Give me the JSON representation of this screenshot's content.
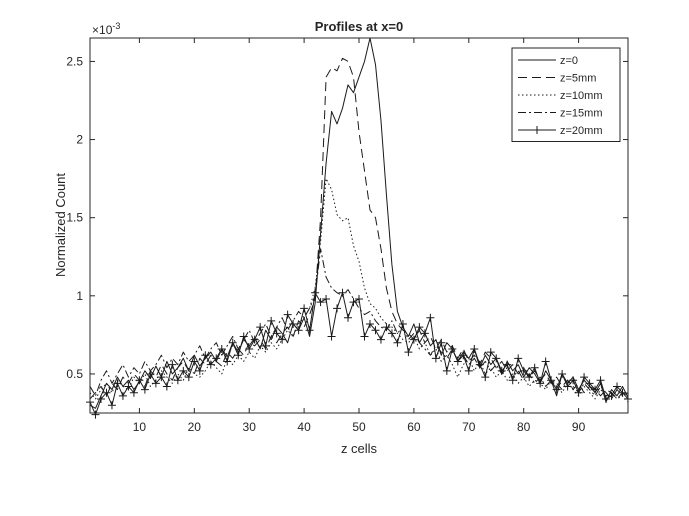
{
  "chart_data": {
    "type": "line",
    "title": "Profiles at x=0",
    "xlabel": "z cells",
    "ylabel": "Normalized Count",
    "y_exponent_label": "10",
    "y_exponent_power": "-3",
    "xlim": [
      1,
      99
    ],
    "ylim": [
      0.25,
      2.65
    ],
    "y_scale_factor": 0.001,
    "x_ticks": [
      10,
      20,
      30,
      40,
      50,
      60,
      70,
      80,
      90
    ],
    "y_ticks": [
      0.5,
      1,
      1.5,
      2,
      2.5
    ],
    "x_tick_labels": [
      "10",
      "20",
      "30",
      "40",
      "50",
      "60",
      "70",
      "80",
      "90"
    ],
    "y_tick_labels": [
      "0.5",
      "1",
      "1.5",
      "2",
      "2.5"
    ],
    "grid": false,
    "legend_position": "top-right",
    "series": [
      {
        "name": "z=0",
        "style": "solid",
        "x": [
          1,
          2,
          3,
          4,
          5,
          6,
          7,
          8,
          9,
          10,
          11,
          12,
          13,
          14,
          15,
          16,
          17,
          18,
          19,
          20,
          21,
          22,
          23,
          24,
          25,
          26,
          27,
          28,
          29,
          30,
          31,
          32,
          33,
          34,
          35,
          36,
          37,
          38,
          39,
          40,
          41,
          42,
          43,
          44,
          45,
          46,
          47,
          48,
          49,
          50,
          51,
          52,
          53,
          54,
          55,
          56,
          57,
          58,
          59,
          60,
          61,
          62,
          63,
          64,
          65,
          66,
          67,
          68,
          69,
          70,
          71,
          72,
          73,
          74,
          75,
          76,
          77,
          78,
          79,
          80,
          81,
          82,
          83,
          84,
          85,
          86,
          87,
          88,
          89,
          90,
          91,
          92,
          93,
          94,
          95,
          96,
          97,
          98,
          99
        ],
        "values": [
          0.3,
          0.28,
          0.36,
          0.44,
          0.4,
          0.48,
          0.42,
          0.46,
          0.4,
          0.45,
          0.52,
          0.47,
          0.55,
          0.48,
          0.58,
          0.5,
          0.54,
          0.6,
          0.52,
          0.62,
          0.55,
          0.6,
          0.64,
          0.58,
          0.66,
          0.61,
          0.7,
          0.64,
          0.72,
          0.68,
          0.73,
          0.66,
          0.78,
          0.72,
          0.8,
          0.76,
          0.7,
          0.82,
          0.78,
          0.86,
          0.74,
          0.95,
          1.4,
          1.85,
          2.18,
          2.1,
          2.2,
          2.35,
          2.3,
          2.4,
          2.5,
          2.65,
          2.48,
          2.12,
          1.65,
          1.2,
          0.9,
          0.8,
          0.74,
          0.82,
          0.7,
          0.76,
          0.68,
          0.72,
          0.62,
          0.7,
          0.66,
          0.58,
          0.64,
          0.6,
          0.66,
          0.54,
          0.62,
          0.56,
          0.6,
          0.5,
          0.58,
          0.52,
          0.56,
          0.48,
          0.54,
          0.5,
          0.44,
          0.52,
          0.46,
          0.36,
          0.5,
          0.44,
          0.48,
          0.4,
          0.46,
          0.42,
          0.38,
          0.44,
          0.32,
          0.4,
          0.36,
          0.42,
          0.35
        ]
      },
      {
        "name": "z=5mm",
        "style": "dashed",
        "x": [
          1,
          2,
          3,
          4,
          5,
          6,
          7,
          8,
          9,
          10,
          11,
          12,
          13,
          14,
          15,
          16,
          17,
          18,
          19,
          20,
          21,
          22,
          23,
          24,
          25,
          26,
          27,
          28,
          29,
          30,
          31,
          32,
          33,
          34,
          35,
          36,
          37,
          38,
          39,
          40,
          41,
          42,
          43,
          44,
          45,
          46,
          47,
          48,
          49,
          50,
          51,
          52,
          53,
          54,
          55,
          56,
          57,
          58,
          59,
          60,
          61,
          62,
          63,
          64,
          65,
          66,
          67,
          68,
          69,
          70,
          71,
          72,
          73,
          74,
          75,
          76,
          77,
          78,
          79,
          80,
          81,
          82,
          83,
          84,
          85,
          86,
          87,
          88,
          89,
          90,
          91,
          92,
          93,
          94,
          95,
          96,
          97,
          98,
          99
        ],
        "values": [
          0.34,
          0.38,
          0.42,
          0.36,
          0.44,
          0.4,
          0.48,
          0.44,
          0.5,
          0.46,
          0.42,
          0.52,
          0.48,
          0.56,
          0.5,
          0.46,
          0.54,
          0.58,
          0.52,
          0.5,
          0.6,
          0.56,
          0.62,
          0.58,
          0.55,
          0.64,
          0.6,
          0.66,
          0.62,
          0.7,
          0.68,
          0.72,
          0.66,
          0.74,
          0.7,
          0.76,
          0.8,
          0.74,
          0.84,
          0.8,
          0.88,
          0.98,
          1.5,
          2.4,
          2.46,
          2.44,
          2.52,
          2.5,
          2.4,
          2.05,
          1.8,
          1.55,
          1.5,
          1.3,
          1.05,
          0.9,
          0.82,
          0.78,
          0.76,
          0.72,
          0.78,
          0.7,
          0.74,
          0.66,
          0.72,
          0.64,
          0.68,
          0.6,
          0.66,
          0.58,
          0.62,
          0.56,
          0.64,
          0.6,
          0.54,
          0.58,
          0.52,
          0.56,
          0.5,
          0.54,
          0.48,
          0.52,
          0.46,
          0.5,
          0.44,
          0.48,
          0.42,
          0.46,
          0.4,
          0.44,
          0.38,
          0.42,
          0.4,
          0.36,
          0.4,
          0.38,
          0.34,
          0.38,
          0.36
        ]
      },
      {
        "name": "z=10mm",
        "style": "dotted",
        "x": [
          1,
          2,
          3,
          4,
          5,
          6,
          7,
          8,
          9,
          10,
          11,
          12,
          13,
          14,
          15,
          16,
          17,
          18,
          19,
          20,
          21,
          22,
          23,
          24,
          25,
          26,
          27,
          28,
          29,
          30,
          31,
          32,
          33,
          34,
          35,
          36,
          37,
          38,
          39,
          40,
          41,
          42,
          43,
          44,
          45,
          46,
          47,
          48,
          49,
          50,
          51,
          52,
          53,
          54,
          55,
          56,
          57,
          58,
          59,
          60,
          61,
          62,
          63,
          64,
          65,
          66,
          67,
          68,
          69,
          70,
          71,
          72,
          73,
          74,
          75,
          76,
          77,
          78,
          79,
          80,
          81,
          82,
          83,
          84,
          85,
          86,
          87,
          88,
          89,
          90,
          91,
          92,
          93,
          94,
          95,
          96,
          97,
          98,
          99
        ],
        "values": [
          0.38,
          0.34,
          0.4,
          0.44,
          0.38,
          0.46,
          0.42,
          0.4,
          0.48,
          0.44,
          0.5,
          0.42,
          0.46,
          0.52,
          0.48,
          0.44,
          0.5,
          0.46,
          0.54,
          0.5,
          0.48,
          0.52,
          0.58,
          0.54,
          0.5,
          0.6,
          0.56,
          0.62,
          0.58,
          0.64,
          0.6,
          0.68,
          0.64,
          0.7,
          0.66,
          0.72,
          0.78,
          0.74,
          0.82,
          0.86,
          0.92,
          1.05,
          1.35,
          1.75,
          1.68,
          1.52,
          1.48,
          1.5,
          1.32,
          1.22,
          1.05,
          0.95,
          0.92,
          0.86,
          0.82,
          0.8,
          0.76,
          0.72,
          0.7,
          0.74,
          0.66,
          0.7,
          0.62,
          0.66,
          0.58,
          0.62,
          0.56,
          0.48,
          0.56,
          0.6,
          0.52,
          0.58,
          0.5,
          0.54,
          0.48,
          0.52,
          0.46,
          0.5,
          0.44,
          0.48,
          0.42,
          0.46,
          0.44,
          0.4,
          0.46,
          0.42,
          0.38,
          0.44,
          0.4,
          0.36,
          0.42,
          0.38,
          0.34,
          0.4,
          0.36,
          0.38,
          0.34,
          0.36,
          0.32
        ]
      },
      {
        "name": "z=15mm",
        "style": "dashdot",
        "x": [
          1,
          2,
          3,
          4,
          5,
          6,
          7,
          8,
          9,
          10,
          11,
          12,
          13,
          14,
          15,
          16,
          17,
          18,
          19,
          20,
          21,
          22,
          23,
          24,
          25,
          26,
          27,
          28,
          29,
          30,
          31,
          32,
          33,
          34,
          35,
          36,
          37,
          38,
          39,
          40,
          41,
          42,
          43,
          44,
          45,
          46,
          47,
          48,
          49,
          50,
          51,
          52,
          53,
          54,
          55,
          56,
          57,
          58,
          59,
          60,
          61,
          62,
          63,
          64,
          65,
          66,
          67,
          68,
          69,
          70,
          71,
          72,
          73,
          74,
          75,
          76,
          77,
          78,
          79,
          80,
          81,
          82,
          83,
          84,
          85,
          86,
          87,
          88,
          89,
          90,
          91,
          92,
          93,
          94,
          95,
          96,
          97,
          98,
          99
        ],
        "values": [
          0.42,
          0.36,
          0.46,
          0.52,
          0.44,
          0.5,
          0.56,
          0.48,
          0.54,
          0.5,
          0.58,
          0.52,
          0.56,
          0.62,
          0.54,
          0.6,
          0.56,
          0.64,
          0.58,
          0.62,
          0.68,
          0.6,
          0.66,
          0.7,
          0.62,
          0.68,
          0.74,
          0.66,
          0.72,
          0.78,
          0.7,
          0.76,
          0.82,
          0.74,
          0.8,
          0.86,
          0.78,
          0.84,
          0.9,
          0.86,
          0.92,
          1.0,
          1.3,
          1.12,
          1.05,
          1.02,
          1.0,
          1.04,
          0.98,
          0.92,
          0.88,
          0.9,
          0.84,
          0.8,
          0.78,
          0.84,
          0.76,
          0.8,
          0.72,
          0.76,
          0.7,
          0.66,
          0.62,
          0.68,
          0.64,
          0.6,
          0.66,
          0.58,
          0.62,
          0.56,
          0.6,
          0.54,
          0.58,
          0.52,
          0.56,
          0.5,
          0.54,
          0.48,
          0.52,
          0.46,
          0.5,
          0.44,
          0.48,
          0.42,
          0.46,
          0.44,
          0.4,
          0.46,
          0.42,
          0.38,
          0.44,
          0.4,
          0.36,
          0.42,
          0.38,
          0.34,
          0.4,
          0.36,
          0.38
        ]
      },
      {
        "name": "z=20mm",
        "style": "solid-plus",
        "x": [
          1,
          2,
          3,
          4,
          5,
          6,
          7,
          8,
          9,
          10,
          11,
          12,
          13,
          14,
          15,
          16,
          17,
          18,
          19,
          20,
          21,
          22,
          23,
          24,
          25,
          26,
          27,
          28,
          29,
          30,
          31,
          32,
          33,
          34,
          35,
          36,
          37,
          38,
          39,
          40,
          41,
          42,
          43,
          44,
          45,
          46,
          47,
          48,
          49,
          50,
          51,
          52,
          53,
          54,
          55,
          56,
          57,
          58,
          59,
          60,
          61,
          62,
          63,
          64,
          65,
          66,
          67,
          68,
          69,
          70,
          71,
          72,
          73,
          74,
          75,
          76,
          77,
          78,
          79,
          80,
          81,
          82,
          83,
          84,
          85,
          86,
          87,
          88,
          89,
          90,
          91,
          92,
          93,
          94,
          95,
          96,
          97,
          98,
          99
        ],
        "values": [
          0.32,
          0.24,
          0.34,
          0.38,
          0.3,
          0.44,
          0.36,
          0.42,
          0.38,
          0.46,
          0.4,
          0.5,
          0.44,
          0.48,
          0.42,
          0.56,
          0.46,
          0.52,
          0.48,
          0.58,
          0.52,
          0.62,
          0.56,
          0.6,
          0.66,
          0.58,
          0.7,
          0.62,
          0.74,
          0.66,
          0.72,
          0.8,
          0.68,
          0.84,
          0.76,
          0.72,
          0.88,
          0.82,
          0.78,
          0.92,
          0.78,
          1.02,
          0.96,
          0.98,
          0.74,
          0.92,
          1.02,
          0.86,
          0.96,
          0.98,
          0.74,
          0.82,
          0.78,
          0.72,
          0.8,
          0.76,
          0.7,
          0.82,
          0.64,
          0.72,
          0.8,
          0.76,
          0.86,
          0.6,
          0.7,
          0.52,
          0.66,
          0.58,
          0.62,
          0.52,
          0.66,
          0.56,
          0.48,
          0.64,
          0.6,
          0.52,
          0.56,
          0.46,
          0.6,
          0.52,
          0.48,
          0.54,
          0.44,
          0.58,
          0.46,
          0.4,
          0.5,
          0.42,
          0.46,
          0.38,
          0.48,
          0.44,
          0.4,
          0.46,
          0.34,
          0.36,
          0.42,
          0.38,
          0.34
        ]
      }
    ]
  }
}
